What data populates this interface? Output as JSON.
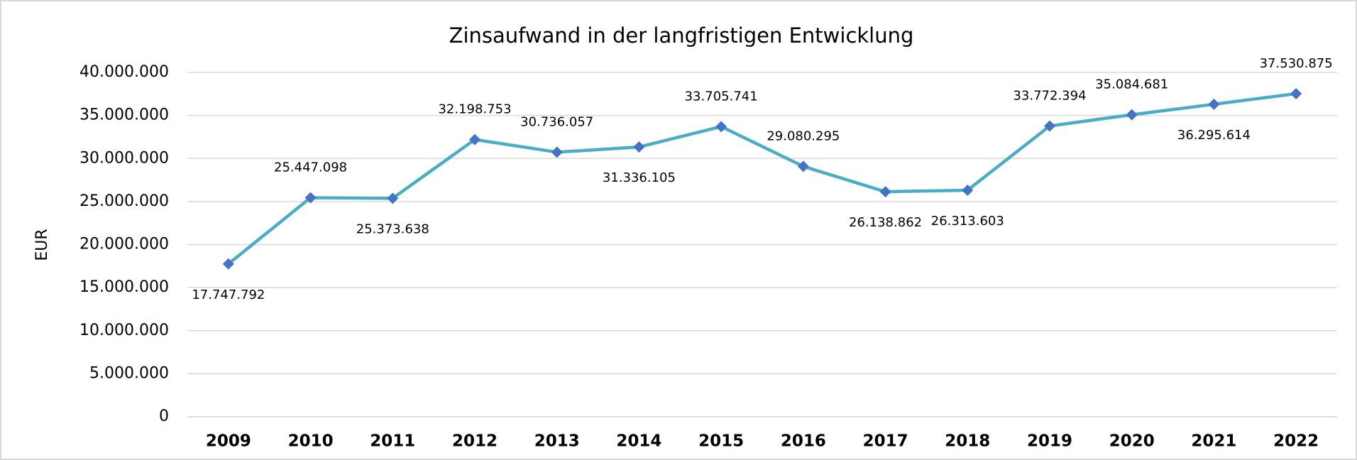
{
  "chart_data": {
    "type": "line",
    "title": "Zinsaufwand in der langfristigen Entwicklung",
    "y_label": "EUR",
    "categories": [
      "2009",
      "2010",
      "2011",
      "2012",
      "2013",
      "2014",
      "2015",
      "2016",
      "2017",
      "2018",
      "2019",
      "2020",
      "2021",
      "2022"
    ],
    "series": [
      {
        "name": "Zinsaufwand",
        "color": "#4bacc6",
        "marker_color": "#4472c4",
        "values": [
          17747792,
          25447098,
          25373638,
          32198753,
          30736057,
          31336105,
          33705741,
          29080295,
          26138862,
          26313603,
          33772394,
          35084681,
          36295614,
          37530875
        ],
        "value_labels": [
          "17.747.792",
          "25.447.098",
          "25.373.638",
          "32.198.753",
          "30.736.057",
          "31.336.105",
          "33.705.741",
          "29.080.295",
          "26.138.862",
          "26.313.603",
          "33.772.394",
          "35.084.681",
          "36.295.614",
          "37.530.875"
        ]
      }
    ],
    "ylim": [
      0,
      40000000
    ],
    "yticks": [
      0,
      {
        "value": 5000000,
        "label": "5.000.000"
      },
      {
        "value": 10000000,
        "label": "10.000.000"
      },
      {
        "value": 15000000,
        "label": "15.000.000"
      },
      {
        "value": 20000000,
        "label": "20.000.000"
      },
      {
        "value": 25000000,
        "label": "25.000.000"
      },
      {
        "value": 30000000,
        "label": "30.000.000"
      },
      {
        "value": 35000000,
        "label": "35.000.000"
      },
      {
        "value": 40000000,
        "label": "40.000.000"
      }
    ],
    "grid": true
  }
}
